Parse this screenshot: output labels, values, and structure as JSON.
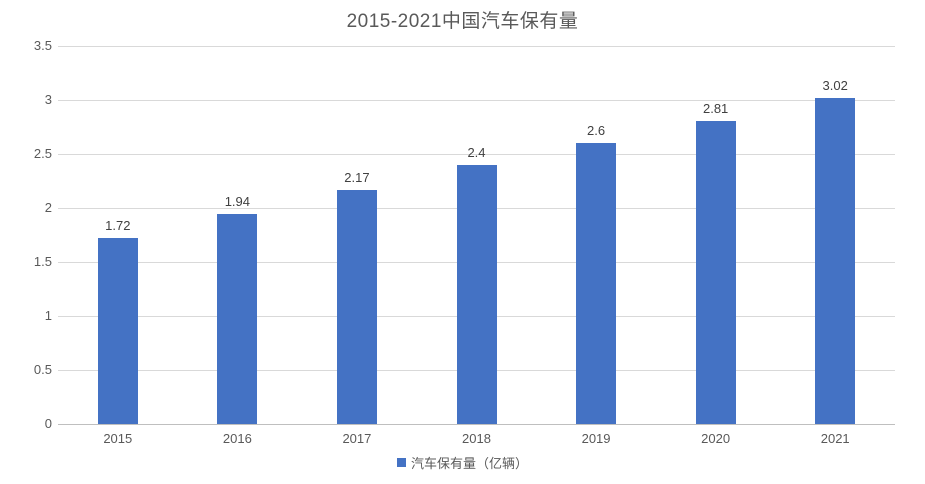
{
  "chart_data": {
    "type": "bar",
    "title": "2015-2021中国汽车保有量",
    "categories": [
      "2015",
      "2016",
      "2017",
      "2018",
      "2019",
      "2020",
      "2021"
    ],
    "values": [
      1.72,
      1.94,
      2.17,
      2.4,
      2.6,
      2.81,
      3.02
    ],
    "series_name": "汽车保有量（亿辆）",
    "xlabel": "",
    "ylabel": "",
    "ylim": [
      0,
      3.5
    ],
    "ytick_step": 0.5,
    "yticks": [
      "0",
      "0.5",
      "1",
      "1.5",
      "2",
      "2.5",
      "3",
      "3.5"
    ],
    "grid": true,
    "data_labels": true,
    "legend_position": "bottom"
  },
  "colors": {
    "bar": "#4472C4",
    "gridline": "#D9D9D9",
    "axis_line": "#BFBFBF",
    "title_text": "#595959",
    "axis_text": "#595959",
    "data_label_text": "#404040",
    "background": "#FFFFFF"
  }
}
